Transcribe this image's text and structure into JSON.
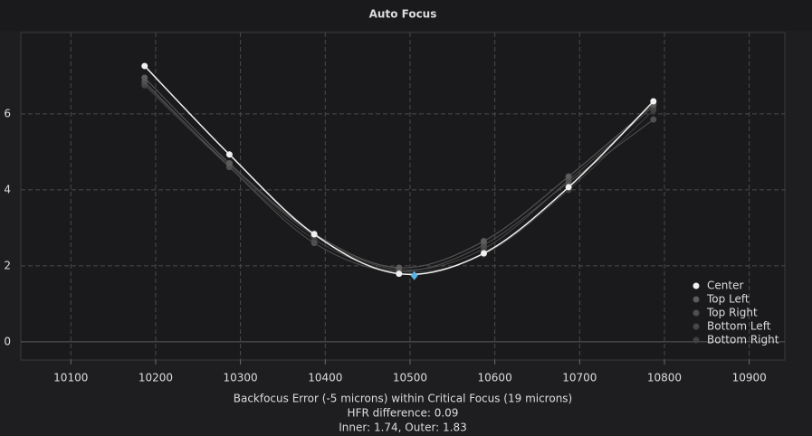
{
  "chart_data": {
    "type": "scatter",
    "title": "Auto Focus",
    "x": [
      10187,
      10287,
      10387,
      10487,
      10587,
      10687,
      10787
    ],
    "series": [
      {
        "name": "Center",
        "color": "#f0f0f0",
        "values": [
          7.26,
          4.93,
          2.83,
          1.79,
          2.33,
          4.07,
          6.33
        ]
      },
      {
        "name": "Top Left",
        "color": "#5c5c5c",
        "values": [
          6.95,
          4.7,
          2.85,
          1.95,
          2.65,
          4.35,
          6.25
        ]
      },
      {
        "name": "Top Right",
        "color": "#4f4f4f",
        "values": [
          6.85,
          4.6,
          2.6,
          1.85,
          2.55,
          4.2,
          5.85
        ]
      },
      {
        "name": "Bottom Left",
        "color": "#474747",
        "values": [
          6.8,
          4.65,
          2.8,
          1.9,
          2.45,
          4.25,
          6.2
        ]
      },
      {
        "name": "Bottom Right",
        "color": "#404040",
        "values": [
          6.75,
          4.6,
          2.7,
          1.85,
          2.3,
          4.0,
          6.1
        ]
      }
    ],
    "focus_point": {
      "x": 10505,
      "y": 1.74,
      "color": "#5ab4e6"
    },
    "xlim": [
      10041,
      10942
    ],
    "ylim": [
      -0.48,
      8.14
    ],
    "xticks": [
      10100,
      10200,
      10300,
      10400,
      10500,
      10600,
      10700,
      10800,
      10900
    ],
    "yticks": [
      0,
      2,
      4,
      6
    ],
    "grid": true,
    "legend": "bottom-right",
    "notes": [
      "Backfocus Error (-5 microns) within Critical Focus (19 microns)",
      "HFR difference: 0.09",
      "Inner: 1.74, Outer: 1.83"
    ]
  }
}
